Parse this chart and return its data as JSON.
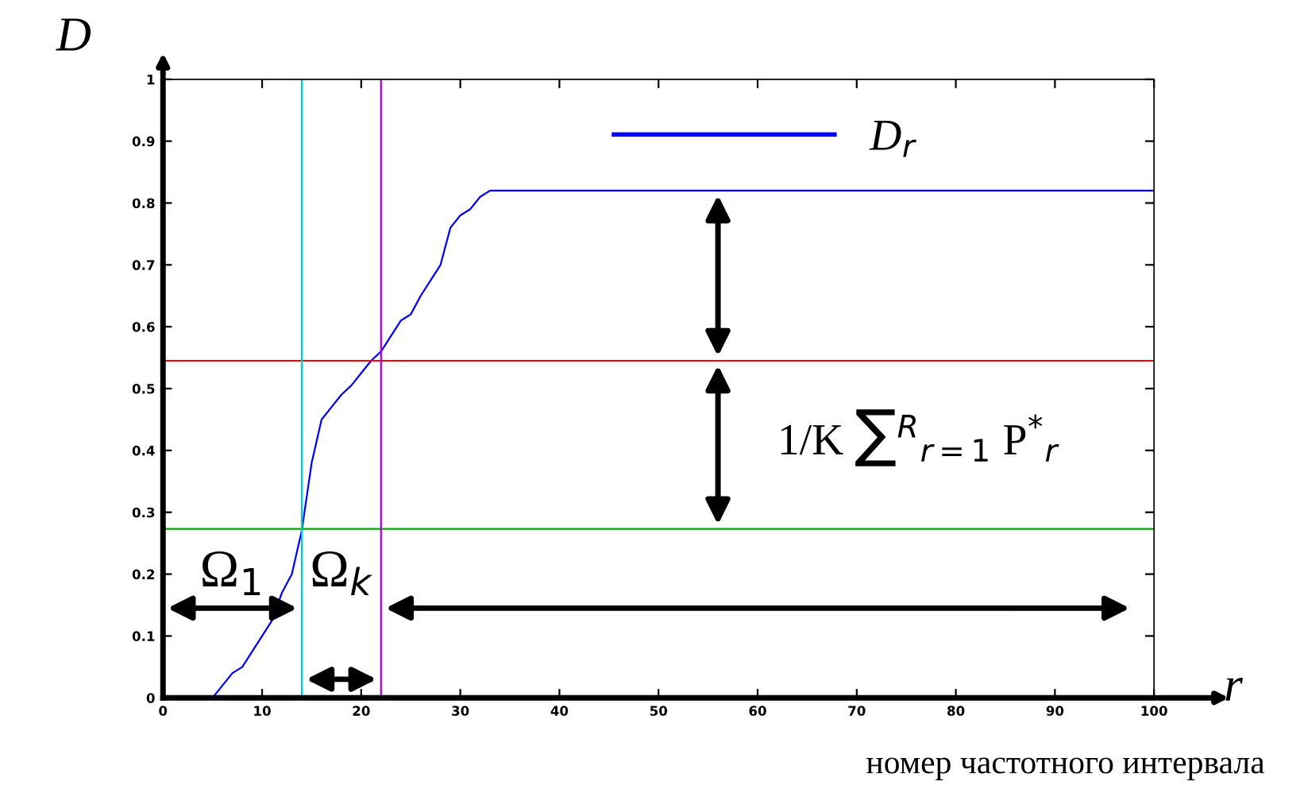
{
  "chart_data": {
    "type": "line",
    "xlabel": "r",
    "ylabel": "D",
    "x": [
      5,
      6,
      7,
      8,
      9,
      10,
      11,
      12,
      13,
      14,
      15,
      16,
      17,
      18,
      19,
      20,
      21,
      22,
      23,
      24,
      25,
      26,
      27,
      28,
      29,
      30,
      31,
      32,
      33,
      100
    ],
    "series": [
      {
        "name": "D$_{r}$",
        "color": "#0000ff",
        "values": [
          0,
          0.02,
          0.04,
          0.05,
          0.075,
          0.1,
          0.125,
          0.17,
          0.2,
          0.27,
          0.38,
          0.45,
          0.47,
          0.49,
          0.505,
          0.525,
          0.545,
          0.56,
          0.585,
          0.61,
          0.62,
          0.65,
          0.675,
          0.7,
          0.76,
          0.78,
          0.79,
          0.81,
          0.82,
          0.82
        ]
      }
    ],
    "ref_lines": [
      {
        "axis": "y",
        "value": 0.545,
        "color": "#ff0000"
      },
      {
        "axis": "y",
        "value": 0.273,
        "color": "#00aa00"
      },
      {
        "axis": "x",
        "value": 14,
        "color": "#00cccc"
      },
      {
        "axis": "x",
        "value": 22,
        "color": "#aa00cc"
      }
    ],
    "annotations": [
      "Ω$_{1}$",
      "Ω$_{k}$",
      "1/K ∑$^{R}$$_{r=1}$ P$^{*}$$_{r}$",
      "номер частотного интервала"
    ],
    "xlim": [
      0,
      100
    ],
    "ylim": [
      0,
      1
    ],
    "xticks": [
      0,
      10,
      20,
      30,
      40,
      50,
      60,
      70,
      80,
      90,
      100
    ],
    "yticks": [
      0,
      0.1,
      0.2,
      0.3,
      0.4,
      0.5,
      0.6,
      0.7,
      0.8,
      0.9,
      1
    ],
    "legend": "top right",
    "grid": false
  }
}
